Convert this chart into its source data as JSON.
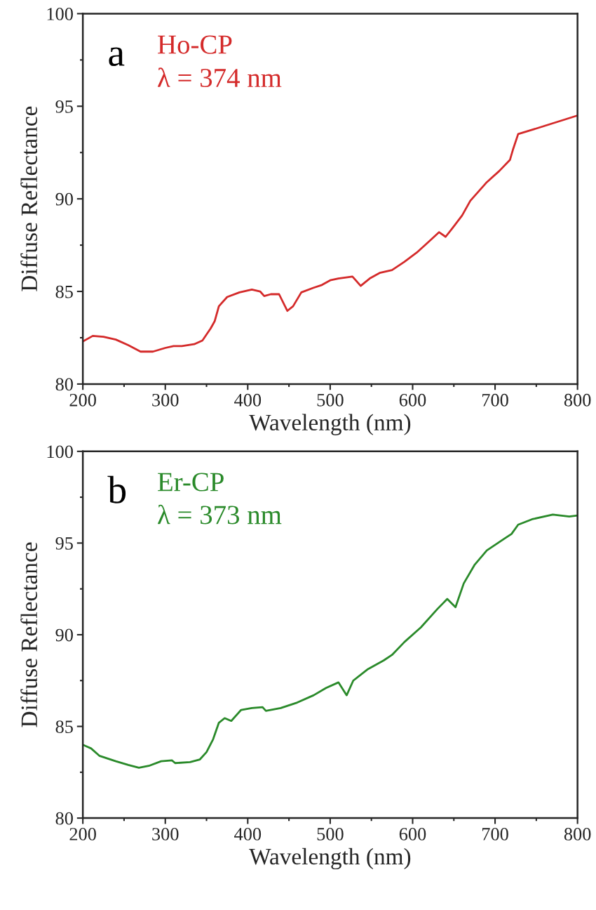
{
  "chart_data": [
    {
      "type": "line",
      "xlabel": "Wavelength (nm)",
      "ylabel": "Diffuse Reflectance",
      "annotations": [
        "a",
        "λ = 374 nm"
      ],
      "xlim": [
        200,
        800
      ],
      "ylim": [
        80,
        100
      ],
      "xticks": [
        200,
        300,
        400,
        500,
        600,
        700,
        800
      ],
      "yticks": [
        80,
        85,
        90,
        95,
        100
      ],
      "grid": false,
      "legend": false,
      "series": [
        {
          "name": "Ho-CP",
          "color": "#d42a2a",
          "x": [
            200,
            212,
            225,
            240,
            255,
            270,
            285,
            300,
            310,
            320,
            335,
            345,
            355,
            360,
            365,
            375,
            390,
            405,
            415,
            420,
            428,
            438,
            448,
            455,
            465,
            480,
            490,
            500,
            510,
            527,
            537,
            548,
            560,
            575,
            590,
            605,
            620,
            632,
            640,
            648,
            660,
            670,
            690,
            705,
            718,
            722,
            728,
            750,
            775,
            800
          ],
          "values": [
            82.3,
            82.6,
            82.55,
            82.4,
            82.1,
            81.75,
            81.75,
            81.95,
            82.05,
            82.05,
            82.15,
            82.35,
            83.0,
            83.4,
            84.2,
            84.7,
            84.95,
            85.1,
            85.0,
            84.75,
            84.85,
            84.85,
            83.95,
            84.2,
            84.95,
            85.2,
            85.35,
            85.6,
            85.7,
            85.8,
            85.3,
            85.7,
            86.0,
            86.15,
            86.6,
            87.1,
            87.7,
            88.2,
            87.95,
            88.4,
            89.1,
            89.9,
            90.9,
            91.5,
            92.1,
            92.7,
            93.5,
            93.8,
            94.15,
            94.5
          ]
        }
      ]
    },
    {
      "type": "line",
      "xlabel": "Wavelength (nm)",
      "ylabel": "Diffuse Reflectance",
      "annotations": [
        "b",
        "λ = 373 nm"
      ],
      "xlim": [
        200,
        800
      ],
      "ylim": [
        80,
        100
      ],
      "xticks": [
        200,
        300,
        400,
        500,
        600,
        700,
        800
      ],
      "yticks": [
        80,
        85,
        90,
        95,
        100
      ],
      "grid": false,
      "legend": false,
      "series": [
        {
          "name": "Er-CP",
          "color": "#2a8a2a",
          "x": [
            200,
            210,
            220,
            240,
            255,
            268,
            280,
            295,
            308,
            312,
            330,
            342,
            350,
            358,
            365,
            372,
            380,
            392,
            405,
            418,
            422,
            440,
            460,
            480,
            495,
            510,
            520,
            528,
            545,
            565,
            575,
            590,
            610,
            630,
            642,
            652,
            662,
            675,
            690,
            710,
            720,
            728,
            745,
            770,
            790,
            800
          ],
          "values": [
            84.0,
            83.8,
            83.4,
            83.1,
            82.9,
            82.75,
            82.85,
            83.1,
            83.15,
            83.0,
            83.05,
            83.2,
            83.6,
            84.3,
            85.2,
            85.45,
            85.3,
            85.9,
            86.0,
            86.05,
            85.85,
            86.0,
            86.3,
            86.7,
            87.1,
            87.4,
            86.7,
            87.5,
            88.1,
            88.6,
            88.9,
            89.6,
            90.4,
            91.4,
            91.95,
            91.5,
            92.8,
            93.8,
            94.6,
            95.2,
            95.5,
            96.0,
            96.3,
            96.55,
            96.45,
            96.5
          ]
        }
      ]
    }
  ]
}
